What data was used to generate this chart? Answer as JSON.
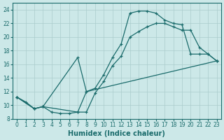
{
  "xlabel": "Humidex (Indice chaleur)",
  "bg_color": "#cce8e8",
  "line_color": "#1a6b6b",
  "grid_color": "#aacccc",
  "xlim": [
    -0.5,
    23.5
  ],
  "ylim": [
    8,
    25
  ],
  "xticks": [
    0,
    1,
    2,
    3,
    4,
    5,
    6,
    7,
    8,
    9,
    10,
    11,
    12,
    13,
    14,
    15,
    16,
    17,
    18,
    19,
    20,
    21,
    22,
    23
  ],
  "yticks": [
    8,
    10,
    12,
    14,
    16,
    18,
    20,
    22,
    24
  ],
  "curve1_x": [
    0,
    1,
    2,
    3,
    4,
    5,
    6,
    7,
    8,
    9,
    10,
    11,
    12,
    13,
    14,
    15,
    16,
    17,
    18,
    19,
    20,
    21,
    22,
    23
  ],
  "curve1_y": [
    11.2,
    10.5,
    9.5,
    9.8,
    9.0,
    8.8,
    8.8,
    9.0,
    9.0,
    11.8,
    13.5,
    15.8,
    17.2,
    20.0,
    20.8,
    21.5,
    22.0,
    22.0,
    21.5,
    21.0,
    21.0,
    18.5,
    17.5,
    16.5
  ],
  "curve2_x": [
    0,
    2,
    3,
    7,
    8,
    9,
    10,
    11,
    12,
    13,
    14,
    15,
    16,
    17,
    18,
    19,
    20,
    21,
    22,
    23
  ],
  "curve2_y": [
    11.2,
    9.5,
    9.8,
    17.0,
    12.0,
    12.5,
    14.5,
    17.0,
    19.0,
    23.5,
    23.8,
    23.8,
    23.5,
    22.5,
    22.0,
    21.8,
    17.5,
    17.5,
    17.5,
    16.5
  ],
  "curve3_x": [
    0,
    2,
    3,
    7,
    8,
    23
  ],
  "curve3_y": [
    11.2,
    9.5,
    9.8,
    9.0,
    12.0,
    16.5
  ]
}
